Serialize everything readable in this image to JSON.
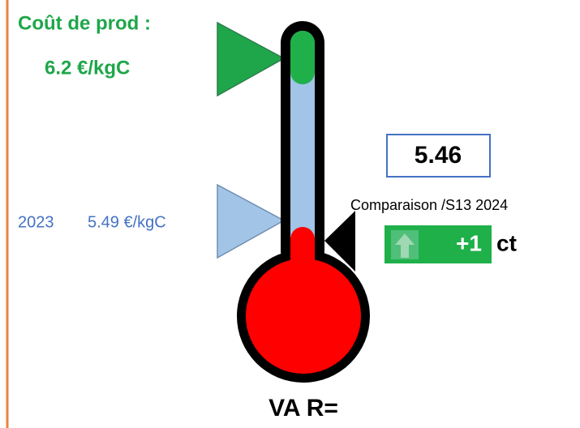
{
  "header": {
    "title": "Coût de prod :",
    "value": "6.2 €/kgC"
  },
  "reference": {
    "year": "2023",
    "value": "5.49 €/kgC"
  },
  "current": {
    "value": "5.46"
  },
  "comparison": {
    "label": "Comparaison /S13 2024",
    "delta": "+1",
    "unit": "ct"
  },
  "footer": {
    "label": "VA R="
  }
}
